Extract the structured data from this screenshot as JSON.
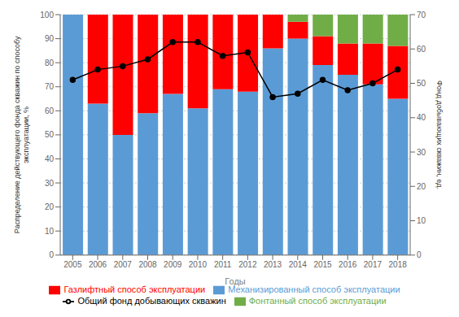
{
  "chart_data": {
    "type": "bar",
    "xlabel": "Годы",
    "ylabel": "Распределение действующего фонда скважин по способу\nэксплуатации, %",
    "y2label": "Фонд добывающих скважин, ед.",
    "categories": [
      "2005",
      "2006",
      "2007",
      "2008",
      "2009",
      "2010",
      "2011",
      "2012",
      "2013",
      "2014",
      "2015",
      "2016",
      "2017",
      "2018"
    ],
    "series": [
      {
        "name": "Механизированный  способ эксплуатации",
        "color": "#5B9BD5",
        "values": [
          100,
          63,
          50,
          59,
          67,
          61,
          69,
          68,
          86,
          90,
          79,
          75,
          71,
          65
        ]
      },
      {
        "name": "Газлифтный  способ эксплуатации",
        "color": "#FF0000",
        "values": [
          0,
          37,
          50,
          41,
          33,
          39,
          31,
          32,
          14,
          7,
          12,
          13,
          17,
          22
        ]
      },
      {
        "name": "Фонтанный  способ эксплуатации",
        "color": "#70AD47",
        "values": [
          0,
          0,
          0,
          0,
          0,
          0,
          0,
          0,
          0,
          3,
          9,
          12,
          12,
          13
        ]
      },
      {
        "name": "Общий фонд добывающих скважин",
        "type": "line",
        "axis": "y2",
        "color": "#000000",
        "marker": "circle",
        "values": [
          51,
          54,
          55,
          57,
          62,
          62,
          58,
          59,
          46,
          47,
          51,
          48,
          50,
          54
        ]
      }
    ],
    "ylim": [
      0,
      100
    ],
    "yticks": [
      0,
      10,
      20,
      30,
      40,
      50,
      60,
      70,
      80,
      90,
      100
    ],
    "y2lim": [
      0,
      70
    ],
    "y2ticks": [
      0,
      10,
      20,
      30,
      40,
      50,
      60,
      70
    ],
    "stacked": true,
    "grid": true,
    "legend": "bottom"
  }
}
